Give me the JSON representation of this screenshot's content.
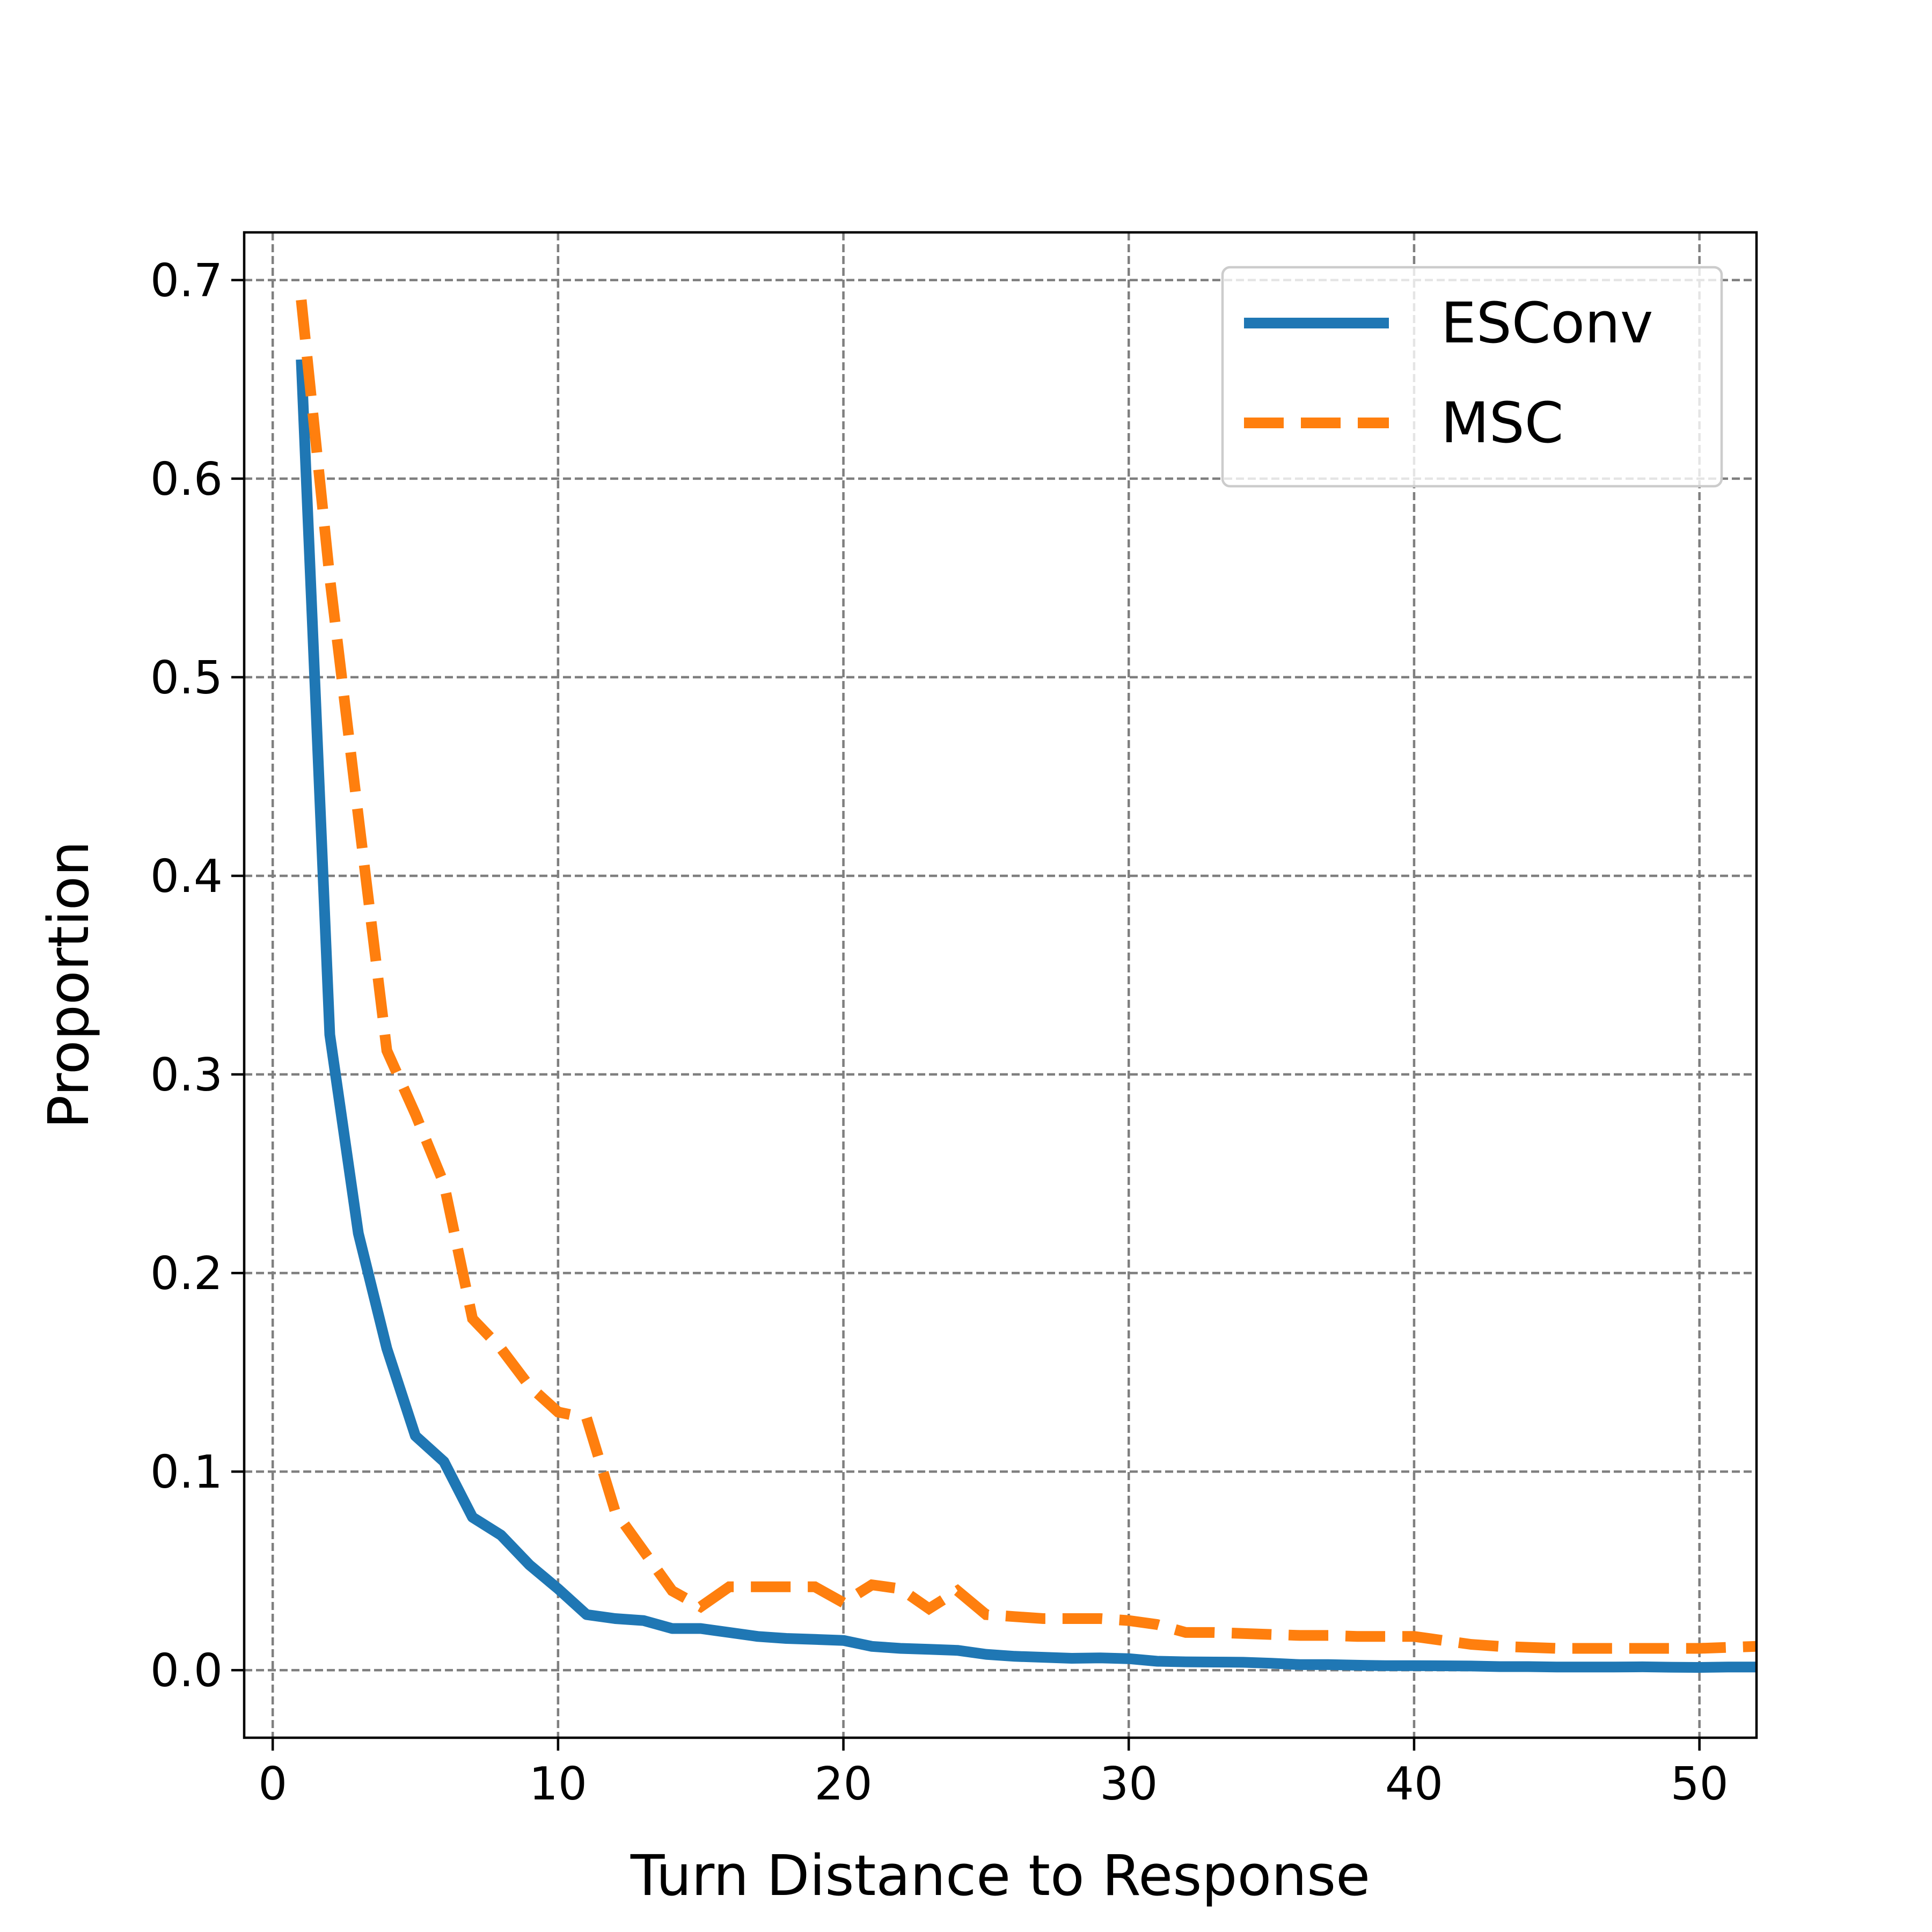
{
  "chart_data": {
    "type": "line",
    "title": "",
    "xlabel": "Turn Distance to Response",
    "ylabel": "Proportion",
    "xlim": [
      -1,
      52
    ],
    "ylim": [
      -0.034,
      0.724
    ],
    "xticks": [
      0,
      10,
      20,
      30,
      40,
      50
    ],
    "yticks": [
      0.0,
      0.1,
      0.2,
      0.3,
      0.4,
      0.5,
      0.6,
      0.7
    ],
    "xtick_labels": [
      "0",
      "10",
      "20",
      "30",
      "40",
      "50"
    ],
    "ytick_labels": [
      "0.0",
      "0.1",
      "0.2",
      "0.3",
      "0.4",
      "0.5",
      "0.6",
      "0.7"
    ],
    "grid": true,
    "legend_position": "upper right",
    "series": [
      {
        "name": "ESConv",
        "color": "#1f77b4",
        "linestyle": "solid",
        "x": [
          1,
          2,
          3,
          4,
          5,
          6,
          7,
          8,
          9,
          10,
          11,
          12,
          13,
          14,
          15,
          16,
          17,
          18,
          19,
          20,
          21,
          22,
          23,
          24,
          25,
          26,
          27,
          28,
          29,
          30,
          31,
          32,
          33,
          34,
          35,
          36,
          37,
          38,
          39,
          40,
          41,
          42,
          43,
          44,
          45,
          46,
          47,
          48,
          49,
          50,
          51,
          52
        ],
        "y": [
          0.66,
          0.32,
          0.22,
          0.162,
          0.118,
          0.105,
          0.077,
          0.068,
          0.053,
          0.041,
          0.028,
          0.026,
          0.025,
          0.021,
          0.021,
          0.019,
          0.017,
          0.016,
          0.0155,
          0.015,
          0.012,
          0.011,
          0.0105,
          0.01,
          0.008,
          0.007,
          0.0065,
          0.006,
          0.0062,
          0.0058,
          0.0045,
          0.0042,
          0.0041,
          0.004,
          0.0035,
          0.0028,
          0.0028,
          0.0025,
          0.0023,
          0.0023,
          0.0022,
          0.0021,
          0.0018,
          0.0018,
          0.0016,
          0.0016,
          0.0016,
          0.0017,
          0.0015,
          0.0014,
          0.0016,
          0.0016
        ]
      },
      {
        "name": "MSC",
        "color": "#ff7f0e",
        "linestyle": "dashed",
        "x": [
          1,
          2,
          3,
          4,
          5,
          6,
          7,
          8,
          9,
          10,
          11,
          12,
          13,
          14,
          15,
          16,
          17,
          18,
          19,
          20,
          21,
          22,
          23,
          24,
          25,
          26,
          27,
          28,
          29,
          30,
          31,
          32,
          33,
          34,
          35,
          36,
          37,
          38,
          39,
          40,
          41,
          42,
          43,
          44,
          45,
          46,
          47,
          48,
          49,
          50,
          51,
          52
        ],
        "y": [
          0.69,
          0.55,
          0.43,
          0.312,
          0.28,
          0.245,
          0.177,
          0.162,
          0.143,
          0.13,
          0.127,
          0.08,
          0.06,
          0.04,
          0.032,
          0.042,
          0.042,
          0.042,
          0.042,
          0.034,
          0.043,
          0.041,
          0.031,
          0.04,
          0.028,
          0.027,
          0.026,
          0.026,
          0.026,
          0.025,
          0.023,
          0.019,
          0.019,
          0.0185,
          0.018,
          0.0175,
          0.0175,
          0.017,
          0.017,
          0.017,
          0.015,
          0.013,
          0.012,
          0.0115,
          0.011,
          0.011,
          0.011,
          0.011,
          0.011,
          0.011,
          0.0115,
          0.012
        ]
      }
    ]
  }
}
